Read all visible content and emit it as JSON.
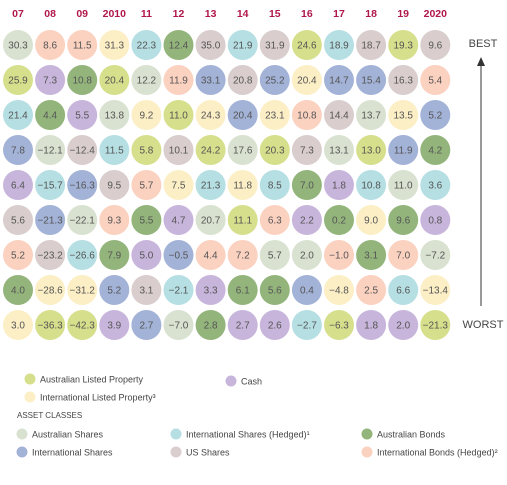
{
  "chart_data": {
    "type": "matrix",
    "categories": [
      "07",
      "08",
      "09",
      "2010",
      "11",
      "12",
      "13",
      "14",
      "15",
      "16",
      "17",
      "18",
      "19",
      "2020"
    ],
    "best_label": "BEST",
    "worst_label": "WORST",
    "legend_title": "ASSET CLASSES",
    "assets": [
      {
        "name": "Australian Listed Property",
        "color": "#d6df8b"
      },
      {
        "name": "International Listed Property³",
        "color": "#fcefc6"
      },
      {
        "name": "Cash",
        "color": "#c8b5dc"
      },
      {
        "name": "Australian Shares",
        "color": "#d9e2d0"
      },
      {
        "name": "International Shares (Hedged)¹",
        "color": "#b5dfe3"
      },
      {
        "name": "Australian Bonds",
        "color": "#93b57c"
      },
      {
        "name": "International Shares",
        "color": "#a3b2d7"
      },
      {
        "name": "US Shares",
        "color": "#d9cdcd"
      },
      {
        "name": "International Bonds (Hedged)²",
        "color": "#fbd1c0"
      }
    ],
    "columns": [
      {
        "values": [
          30.3,
          25.9,
          21.4,
          7.8,
          6.4,
          5.6,
          5.2,
          4.0,
          3.0
        ],
        "value_labels": [
          "30.3",
          "25.9",
          "21.4",
          "7.8",
          "6.4",
          "5.6",
          "5.2",
          "4.0",
          "3.0"
        ],
        "assets": [
          3,
          0,
          4,
          6,
          2,
          7,
          8,
          5,
          1
        ]
      },
      {
        "values": [
          8.6,
          7.3,
          4.4,
          -12.1,
          -15.7,
          -21.3,
          -23.2,
          -28.6,
          -36.3
        ],
        "value_labels": [
          "8.6",
          "7.3",
          "4.4",
          "−12.1",
          "−15.7",
          "−21.3",
          "−23.2",
          "−28.6",
          "−36.3"
        ],
        "assets": [
          8,
          2,
          5,
          3,
          4,
          6,
          7,
          1,
          0
        ]
      },
      {
        "values": [
          11.5,
          10.8,
          5.5,
          -12.4,
          -16.3,
          -22.1,
          -26.6,
          -31.2,
          -42.3
        ],
        "value_labels": [
          "11.5",
          "10.8",
          "5.5",
          "−12.4",
          "−16.3",
          "−22.1",
          "−26.6",
          "−31.2",
          "−42.3"
        ],
        "assets": [
          8,
          5,
          2,
          7,
          6,
          3,
          4,
          1,
          0
        ]
      },
      {
        "values": [
          31.3,
          20.4,
          13.8,
          11.5,
          9.5,
          9.3,
          7.9,
          5.2,
          3.9
        ],
        "value_labels": [
          "31.3",
          "20.4",
          "13.8",
          "11.5",
          "9.5",
          "9.3",
          "7.9",
          "5.2",
          "3.9"
        ],
        "assets": [
          1,
          0,
          3,
          4,
          7,
          8,
          5,
          6,
          2
        ]
      },
      {
        "values": [
          22.3,
          12.2,
          9.2,
          5.8,
          5.7,
          5.5,
          5.0,
          3.1,
          2.7
        ],
        "value_labels": [
          "22.3",
          "12.2",
          "9.2",
          "5.8",
          "5.7",
          "5.5",
          "5.0",
          "3.1",
          "2.7"
        ],
        "assets": [
          4,
          3,
          1,
          0,
          8,
          5,
          2,
          7,
          6
        ]
      },
      {
        "values": [
          12.4,
          11.9,
          11.0,
          10.1,
          7.5,
          4.7,
          -0.5,
          -2.1,
          -7.0
        ],
        "value_labels": [
          "12.4",
          "11.9",
          "11.0",
          "10.1",
          "7.5",
          "4.7",
          "−0.5",
          "−2.1",
          "−7.0"
        ],
        "assets": [
          5,
          8,
          0,
          7,
          1,
          2,
          6,
          4,
          3
        ]
      },
      {
        "values": [
          35.0,
          33.1,
          24.3,
          24.2,
          21.3,
          20.7,
          4.4,
          3.3,
          2.8
        ],
        "value_labels": [
          "35.0",
          "33.1",
          "24.3",
          "24.2",
          "21.3",
          "20.7",
          "4.4",
          "3.3",
          "2.8"
        ],
        "assets": [
          7,
          6,
          1,
          0,
          4,
          3,
          8,
          2,
          5
        ]
      },
      {
        "values": [
          21.9,
          20.8,
          20.4,
          17.6,
          11.8,
          11.1,
          7.2,
          6.1,
          2.7
        ],
        "value_labels": [
          "21.9",
          "20.8",
          "20.4",
          "17.6",
          "11.8",
          "11.1",
          "7.2",
          "6.1",
          "2.7"
        ],
        "assets": [
          4,
          7,
          6,
          3,
          1,
          0,
          8,
          5,
          2
        ]
      },
      {
        "values": [
          31.9,
          25.2,
          23.1,
          20.3,
          8.5,
          6.3,
          5.7,
          5.6,
          2.6
        ],
        "value_labels": [
          "31.9",
          "25.2",
          "23.1",
          "20.3",
          "8.5",
          "6.3",
          "5.7",
          "5.6",
          "2.6"
        ],
        "assets": [
          7,
          6,
          1,
          0,
          4,
          8,
          3,
          5,
          2
        ]
      },
      {
        "values": [
          24.6,
          20.4,
          10.8,
          7.3,
          7.0,
          2.2,
          2.0,
          0.4,
          -2.7
        ],
        "value_labels": [
          "24.6",
          "20.4",
          "10.8",
          "7.3",
          "7.0",
          "2.2",
          "2.0",
          "0.4",
          "−2.7"
        ],
        "assets": [
          0,
          1,
          8,
          7,
          5,
          2,
          3,
          6,
          4
        ]
      },
      {
        "values": [
          18.9,
          14.7,
          14.4,
          13.1,
          1.8,
          0.2,
          -1.0,
          -4.8,
          -6.3
        ],
        "value_labels": [
          "18.9",
          "14.7",
          "14.4",
          "13.1",
          "1.8",
          "0.2",
          "−1.0",
          "−4.8",
          "−6.3"
        ],
        "assets": [
          4,
          6,
          7,
          3,
          2,
          5,
          8,
          1,
          0
        ]
      },
      {
        "values": [
          18.7,
          15.4,
          13.7,
          13.0,
          10.8,
          9.0,
          3.1,
          2.5,
          1.8
        ],
        "value_labels": [
          "18.7",
          "15.4",
          "13.7",
          "13.0",
          "10.8",
          "9.0",
          "3.1",
          "2.5",
          "1.8"
        ],
        "assets": [
          7,
          6,
          3,
          0,
          4,
          1,
          5,
          8,
          2
        ]
      },
      {
        "values": [
          19.3,
          16.3,
          13.5,
          11.9,
          11.0,
          9.6,
          7.0,
          6.6,
          2.0
        ],
        "value_labels": [
          "19.3",
          "16.3",
          "13.5",
          "11.9",
          "11.0",
          "9.6",
          "7.0",
          "6.6",
          "2.0"
        ],
        "assets": [
          0,
          7,
          1,
          6,
          3,
          5,
          8,
          4,
          2
        ]
      },
      {
        "values": [
          9.6,
          5.4,
          5.2,
          4.2,
          3.6,
          0.8,
          -7.2,
          -13.4,
          -21.3
        ],
        "value_labels": [
          "9.6",
          "5.4",
          "5.2",
          "4.2",
          "3.6",
          "0.8",
          "−7.2",
          "−13.4",
          "−21.3"
        ],
        "assets": [
          7,
          8,
          6,
          5,
          4,
          2,
          3,
          1,
          0
        ]
      }
    ]
  }
}
